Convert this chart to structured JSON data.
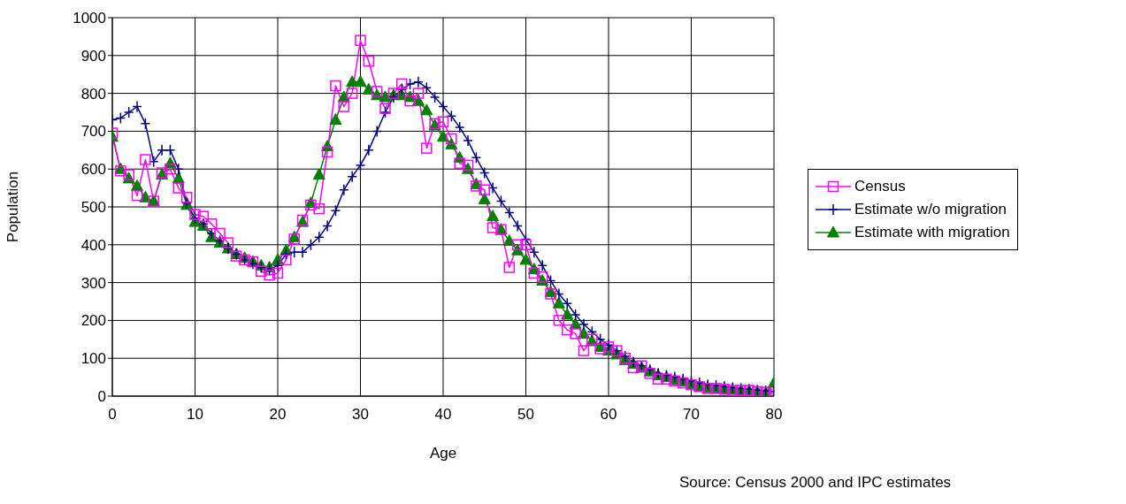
{
  "chart_data": {
    "type": "line",
    "xlabel": "Age",
    "ylabel": "Population",
    "x": [
      0,
      1,
      2,
      3,
      4,
      5,
      6,
      7,
      8,
      9,
      10,
      11,
      12,
      13,
      14,
      15,
      16,
      17,
      18,
      19,
      20,
      21,
      22,
      23,
      24,
      25,
      26,
      27,
      28,
      29,
      30,
      31,
      32,
      33,
      34,
      35,
      36,
      37,
      38,
      39,
      40,
      41,
      42,
      43,
      44,
      45,
      46,
      47,
      48,
      49,
      50,
      51,
      52,
      53,
      54,
      55,
      56,
      57,
      58,
      59,
      60,
      61,
      62,
      63,
      64,
      65,
      66,
      67,
      68,
      69,
      70,
      71,
      72,
      73,
      74,
      75,
      76,
      77,
      78,
      79,
      80
    ],
    "series": [
      {
        "name": "Census",
        "color": "#ff00ff",
        "marker": "square",
        "values": [
          695,
          595,
          585,
          530,
          625,
          515,
          590,
          600,
          550,
          525,
          480,
          475,
          455,
          430,
          405,
          370,
          360,
          355,
          330,
          320,
          325,
          360,
          415,
          465,
          505,
          495,
          645,
          820,
          765,
          800,
          940,
          885,
          805,
          760,
          800,
          825,
          780,
          800,
          655,
          720,
          725,
          680,
          615,
          610,
          555,
          545,
          445,
          440,
          340,
          400,
          400,
          325,
          315,
          270,
          200,
          175,
          165,
          120,
          150,
          125,
          130,
          120,
          100,
          75,
          80,
          60,
          45,
          45,
          40,
          35,
          30,
          25,
          20,
          20,
          18,
          15,
          15,
          15,
          12,
          10,
          5
        ]
      },
      {
        "name": "Estimate w/o migration",
        "color": "#000080",
        "marker": "cross",
        "values": [
          730,
          735,
          750,
          765,
          720,
          620,
          650,
          650,
          600,
          510,
          470,
          455,
          430,
          410,
          390,
          375,
          360,
          350,
          340,
          335,
          345,
          375,
          380,
          380,
          400,
          420,
          450,
          490,
          545,
          580,
          610,
          650,
          700,
          750,
          790,
          810,
          825,
          830,
          815,
          790,
          765,
          740,
          710,
          675,
          630,
          590,
          550,
          515,
          485,
          450,
          415,
          380,
          345,
          305,
          270,
          245,
          215,
          190,
          170,
          150,
          135,
          120,
          105,
          90,
          80,
          70,
          60,
          55,
          50,
          45,
          40,
          35,
          30,
          28,
          25,
          22,
          20,
          18,
          16,
          14,
          12
        ]
      },
      {
        "name": "Estimate with migration",
        "color": "#008000",
        "marker": "triangle",
        "values": [
          685,
          600,
          575,
          555,
          525,
          515,
          585,
          615,
          575,
          505,
          460,
          450,
          420,
          405,
          390,
          375,
          365,
          355,
          345,
          340,
          360,
          385,
          420,
          460,
          510,
          585,
          660,
          730,
          790,
          830,
          830,
          810,
          795,
          790,
          795,
          795,
          790,
          780,
          755,
          715,
          685,
          665,
          630,
          600,
          560,
          520,
          475,
          440,
          410,
          385,
          360,
          335,
          305,
          275,
          245,
          215,
          190,
          165,
          145,
          130,
          120,
          110,
          95,
          85,
          75,
          65,
          55,
          50,
          42,
          38,
          32,
          25,
          22,
          20,
          18,
          17,
          15,
          14,
          12,
          10,
          35
        ]
      }
    ],
    "xlim": [
      0,
      80
    ],
    "xticks": [
      0,
      10,
      20,
      30,
      40,
      50,
      60,
      70,
      80
    ],
    "ylim": [
      0,
      1000
    ],
    "yticks": [
      0,
      100,
      200,
      300,
      400,
      500,
      600,
      700,
      800,
      900,
      1000
    ],
    "grid": true,
    "legend": "right",
    "line_style": "solid",
    "annotations": [
      "Source: Census 2000 and IPC estimates"
    ]
  }
}
